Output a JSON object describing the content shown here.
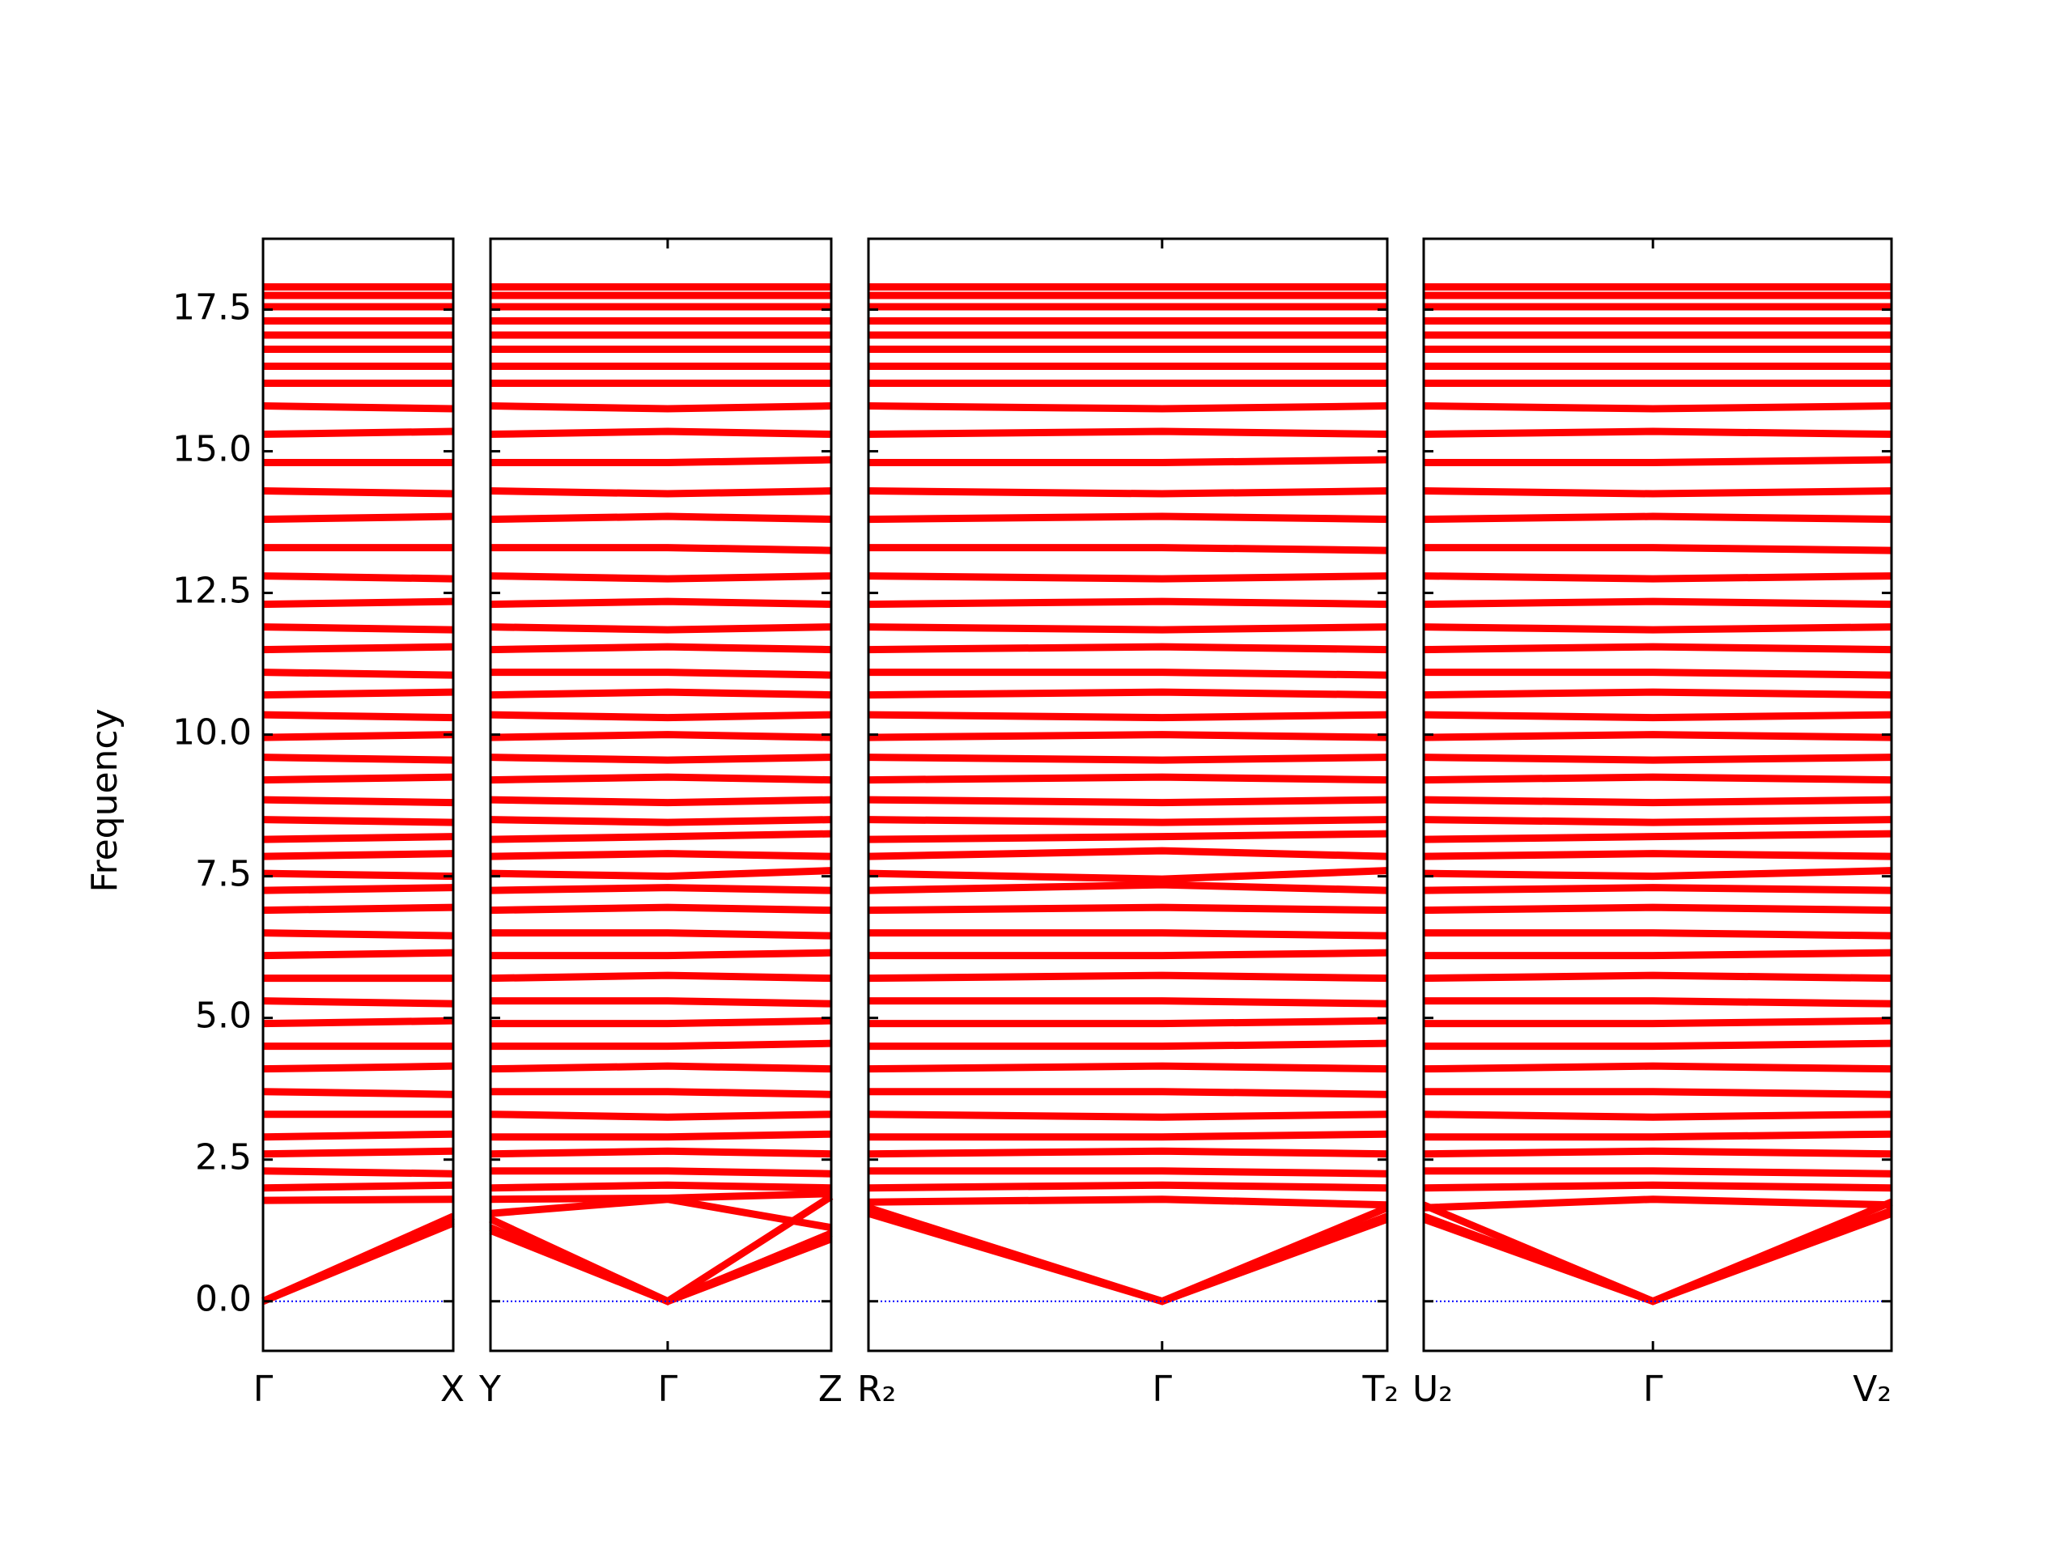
{
  "chart_data": {
    "type": "line",
    "ylabel": "Frequency",
    "color": "#ff0000",
    "ylim": [
      -0.875,
      18.75
    ],
    "yticks": [
      {
        "value": 0,
        "label": "0.0"
      },
      2.5,
      {
        "value": 5,
        "label": "5.0"
      },
      7.5,
      {
        "value": 10,
        "label": "10.0"
      },
      12.5,
      {
        "value": 15,
        "label": "15.0"
      },
      17.5
    ],
    "zero_line": {
      "value": 0,
      "color": "#0000ff"
    },
    "panels": [
      {
        "labels": [
          "Γ",
          "X"
        ],
        "x": [
          0,
          1
        ],
        "xlim": [
          0,
          1
        ],
        "bands": [
          [
            0,
            1.42
          ],
          [
            0,
            1.38
          ],
          [
            0,
            1.5
          ],
          [
            1.78,
            1.8
          ],
          [
            2.0,
            2.05
          ],
          [
            2.3,
            2.25
          ],
          [
            2.6,
            2.65
          ],
          [
            2.9,
            2.95
          ],
          [
            3.3,
            3.3
          ],
          [
            3.7,
            3.65
          ],
          [
            4.1,
            4.15
          ],
          [
            4.5,
            4.5
          ],
          [
            4.9,
            4.95
          ],
          [
            5.3,
            5.25
          ],
          [
            5.7,
            5.7
          ],
          [
            6.1,
            6.15
          ],
          [
            6.5,
            6.45
          ],
          [
            6.9,
            6.95
          ],
          [
            7.25,
            7.3
          ],
          [
            7.55,
            7.5
          ],
          [
            7.85,
            7.9
          ],
          [
            8.15,
            8.2
          ],
          [
            8.5,
            8.45
          ],
          [
            8.85,
            8.8
          ],
          [
            9.2,
            9.25
          ],
          [
            9.6,
            9.55
          ],
          [
            9.95,
            10.0
          ],
          [
            10.35,
            10.3
          ],
          [
            10.7,
            10.75
          ],
          [
            11.1,
            11.05
          ],
          [
            11.5,
            11.55
          ],
          [
            11.9,
            11.85
          ],
          [
            12.3,
            12.35
          ],
          [
            12.8,
            12.75
          ],
          [
            13.3,
            13.3
          ],
          [
            13.8,
            13.85
          ],
          [
            14.3,
            14.25
          ],
          [
            14.8,
            14.8
          ],
          [
            15.3,
            15.35
          ],
          [
            15.8,
            15.75
          ],
          [
            16.2,
            16.2
          ],
          [
            16.5,
            16.5
          ],
          [
            16.8,
            16.8
          ],
          [
            17.05,
            17.05
          ],
          [
            17.3,
            17.3
          ],
          [
            17.55,
            17.55
          ],
          [
            17.75,
            17.75
          ],
          [
            17.9,
            17.9
          ]
        ]
      },
      {
        "labels": [
          "Y",
          "Γ",
          "Z"
        ],
        "x": [
          0,
          0.52,
          1
        ],
        "xlim": [
          0,
          1
        ],
        "bands": [
          [
            1.3,
            0,
            1.2
          ],
          [
            1.25,
            0,
            1.1
          ],
          [
            1.45,
            0,
            1.85
          ],
          [
            1.55,
            1.8,
            1.3
          ],
          [
            1.8,
            1.82,
            1.9
          ],
          [
            2.0,
            2.05,
            2.0
          ],
          [
            2.3,
            2.3,
            2.25
          ],
          [
            2.6,
            2.65,
            2.6
          ],
          [
            2.9,
            2.9,
            2.95
          ],
          [
            3.3,
            3.25,
            3.3
          ],
          [
            3.7,
            3.7,
            3.65
          ],
          [
            4.1,
            4.15,
            4.1
          ],
          [
            4.5,
            4.5,
            4.55
          ],
          [
            4.9,
            4.9,
            4.95
          ],
          [
            5.3,
            5.3,
            5.25
          ],
          [
            5.7,
            5.75,
            5.7
          ],
          [
            6.1,
            6.1,
            6.15
          ],
          [
            6.5,
            6.5,
            6.45
          ],
          [
            6.9,
            6.95,
            6.9
          ],
          [
            7.25,
            7.3,
            7.25
          ],
          [
            7.55,
            7.5,
            7.6
          ],
          [
            7.85,
            7.9,
            7.85
          ],
          [
            8.15,
            8.2,
            8.25
          ],
          [
            8.5,
            8.45,
            8.5
          ],
          [
            8.85,
            8.8,
            8.85
          ],
          [
            9.2,
            9.25,
            9.2
          ],
          [
            9.6,
            9.55,
            9.6
          ],
          [
            9.95,
            10.0,
            9.95
          ],
          [
            10.35,
            10.3,
            10.35
          ],
          [
            10.7,
            10.75,
            10.7
          ],
          [
            11.1,
            11.1,
            11.05
          ],
          [
            11.5,
            11.55,
            11.5
          ],
          [
            11.9,
            11.85,
            11.9
          ],
          [
            12.3,
            12.35,
            12.3
          ],
          [
            12.8,
            12.75,
            12.8
          ],
          [
            13.3,
            13.3,
            13.25
          ],
          [
            13.8,
            13.85,
            13.8
          ],
          [
            14.3,
            14.25,
            14.3
          ],
          [
            14.8,
            14.8,
            14.85
          ],
          [
            15.3,
            15.35,
            15.3
          ],
          [
            15.8,
            15.75,
            15.8
          ],
          [
            16.2,
            16.2,
            16.2
          ],
          [
            16.5,
            16.5,
            16.5
          ],
          [
            16.8,
            16.8,
            16.8
          ],
          [
            17.05,
            17.05,
            17.05
          ],
          [
            17.3,
            17.3,
            17.3
          ],
          [
            17.55,
            17.55,
            17.55
          ],
          [
            17.75,
            17.75,
            17.75
          ],
          [
            17.9,
            17.9,
            17.9
          ]
        ]
      },
      {
        "labels": [
          "R₂",
          "Γ",
          "T₂"
        ],
        "x": [
          0,
          0.566,
          1
        ],
        "xlim": [
          0,
          1
        ],
        "bands": [
          [
            1.6,
            0,
            1.5
          ],
          [
            1.55,
            0,
            1.45
          ],
          [
            1.65,
            0,
            1.65
          ],
          [
            1.75,
            1.8,
            1.7
          ],
          [
            2.0,
            2.05,
            2.0
          ],
          [
            2.3,
            2.3,
            2.25
          ],
          [
            2.6,
            2.65,
            2.6
          ],
          [
            2.9,
            2.9,
            2.95
          ],
          [
            3.3,
            3.25,
            3.3
          ],
          [
            3.7,
            3.7,
            3.65
          ],
          [
            4.1,
            4.15,
            4.1
          ],
          [
            4.5,
            4.5,
            4.55
          ],
          [
            4.9,
            4.9,
            4.95
          ],
          [
            5.3,
            5.3,
            5.25
          ],
          [
            5.7,
            5.75,
            5.7
          ],
          [
            6.1,
            6.1,
            6.15
          ],
          [
            6.5,
            6.5,
            6.45
          ],
          [
            6.9,
            6.95,
            6.9
          ],
          [
            7.25,
            7.35,
            7.25
          ],
          [
            7.55,
            7.45,
            7.6
          ],
          [
            7.85,
            7.95,
            7.85
          ],
          [
            8.15,
            8.2,
            8.25
          ],
          [
            8.5,
            8.45,
            8.5
          ],
          [
            8.85,
            8.8,
            8.85
          ],
          [
            9.2,
            9.25,
            9.2
          ],
          [
            9.6,
            9.55,
            9.6
          ],
          [
            9.95,
            10.0,
            9.95
          ],
          [
            10.35,
            10.3,
            10.35
          ],
          [
            10.7,
            10.75,
            10.7
          ],
          [
            11.1,
            11.1,
            11.05
          ],
          [
            11.5,
            11.55,
            11.5
          ],
          [
            11.9,
            11.85,
            11.9
          ],
          [
            12.3,
            12.35,
            12.3
          ],
          [
            12.8,
            12.75,
            12.8
          ],
          [
            13.3,
            13.3,
            13.25
          ],
          [
            13.8,
            13.85,
            13.8
          ],
          [
            14.3,
            14.25,
            14.3
          ],
          [
            14.8,
            14.8,
            14.85
          ],
          [
            15.3,
            15.35,
            15.3
          ],
          [
            15.8,
            15.75,
            15.8
          ],
          [
            16.2,
            16.2,
            16.2
          ],
          [
            16.5,
            16.5,
            16.5
          ],
          [
            16.8,
            16.8,
            16.8
          ],
          [
            17.05,
            17.05,
            17.05
          ],
          [
            17.3,
            17.3,
            17.3
          ],
          [
            17.55,
            17.55,
            17.55
          ],
          [
            17.75,
            17.75,
            17.75
          ],
          [
            17.9,
            17.9,
            17.9
          ]
        ]
      },
      {
        "labels": [
          "U₂",
          "Γ",
          "V₂"
        ],
        "x": [
          0,
          0.49,
          1
        ],
        "xlim": [
          0,
          1
        ],
        "bands": [
          [
            1.45,
            0,
            1.6
          ],
          [
            1.5,
            0,
            1.55
          ],
          [
            1.7,
            0,
            1.75
          ],
          [
            1.65,
            1.8,
            1.7
          ],
          [
            2.0,
            2.05,
            2.0
          ],
          [
            2.3,
            2.3,
            2.25
          ],
          [
            2.6,
            2.65,
            2.6
          ],
          [
            2.9,
            2.9,
            2.95
          ],
          [
            3.3,
            3.25,
            3.3
          ],
          [
            3.7,
            3.7,
            3.65
          ],
          [
            4.1,
            4.15,
            4.1
          ],
          [
            4.5,
            4.5,
            4.55
          ],
          [
            4.9,
            4.9,
            4.95
          ],
          [
            5.3,
            5.3,
            5.25
          ],
          [
            5.7,
            5.75,
            5.7
          ],
          [
            6.1,
            6.1,
            6.15
          ],
          [
            6.5,
            6.5,
            6.45
          ],
          [
            6.9,
            6.95,
            6.9
          ],
          [
            7.25,
            7.3,
            7.25
          ],
          [
            7.55,
            7.5,
            7.6
          ],
          [
            7.85,
            7.9,
            7.85
          ],
          [
            8.15,
            8.2,
            8.25
          ],
          [
            8.5,
            8.45,
            8.5
          ],
          [
            8.85,
            8.8,
            8.85
          ],
          [
            9.2,
            9.25,
            9.2
          ],
          [
            9.6,
            9.55,
            9.6
          ],
          [
            9.95,
            10.0,
            9.95
          ],
          [
            10.35,
            10.3,
            10.35
          ],
          [
            10.7,
            10.75,
            10.7
          ],
          [
            11.1,
            11.1,
            11.05
          ],
          [
            11.5,
            11.55,
            11.5
          ],
          [
            11.9,
            11.85,
            11.9
          ],
          [
            12.3,
            12.35,
            12.3
          ],
          [
            12.8,
            12.75,
            12.8
          ],
          [
            13.3,
            13.3,
            13.25
          ],
          [
            13.8,
            13.85,
            13.8
          ],
          [
            14.3,
            14.25,
            14.3
          ],
          [
            14.8,
            14.8,
            14.85
          ],
          [
            15.3,
            15.35,
            15.3
          ],
          [
            15.8,
            15.75,
            15.8
          ],
          [
            16.2,
            16.2,
            16.2
          ],
          [
            16.5,
            16.5,
            16.5
          ],
          [
            16.8,
            16.8,
            16.8
          ],
          [
            17.05,
            17.05,
            17.05
          ],
          [
            17.3,
            17.3,
            17.3
          ],
          [
            17.55,
            17.55,
            17.55
          ],
          [
            17.75,
            17.75,
            17.75
          ],
          [
            17.9,
            17.9,
            17.9
          ]
        ]
      }
    ]
  }
}
